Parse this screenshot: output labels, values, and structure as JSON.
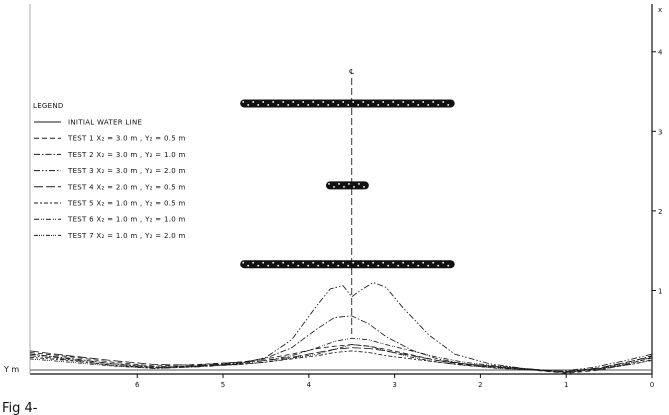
{
  "figure_label": "Fig 4-",
  "chart_data": {
    "type": "line",
    "title": "",
    "xlabel": "",
    "ylabel": "Y m",
    "right_axis_label": "x",
    "centerline_symbol": "℄",
    "x_ticks": [
      "6",
      "5",
      "4",
      "3",
      "2",
      "1",
      "0"
    ],
    "x_tick_values": [
      6,
      5,
      4,
      3,
      2,
      1,
      0
    ],
    "y_ticks": [
      "1",
      "2",
      "3",
      "4"
    ],
    "y_tick_values": [
      1,
      2,
      3,
      4
    ],
    "xlim": [
      0,
      7.25
    ],
    "ylim": [
      -0.05,
      4.6
    ],
    "x_reversed": true,
    "grid": false,
    "legend": {
      "title": "LEGEND",
      "entries": [
        {
          "label": "INITIAL WATER LINE",
          "dash": "solid"
        },
        {
          "label": "TEST 1  X₂ = 3.0 m ,  Y₂ = 0.5 m",
          "dash": "dashed"
        },
        {
          "label": "TEST 2  X₂ = 3.0 m ,  Y₂ = 1.0 m",
          "dash": "dash-dot"
        },
        {
          "label": "TEST 3  X₂ = 3.0 m ,  Y₂ = 2.0 m",
          "dash": "dash-dot-dot"
        },
        {
          "label": "TEST 4  X₂ = 2.0 m ,  Y₂ = 0.5 m",
          "dash": "long-dash"
        },
        {
          "label": "TEST 5  X₂ = 1.0 m ,  Y₂ = 0.5 m",
          "dash": "dash-x"
        },
        {
          "label": "TEST 6  X₂ = 1.0 m ,  Y₂ = 1.0 m",
          "dash": "dash-xx"
        },
        {
          "label": "TEST 7  X₂ = 1.0 m ,  Y₂ = 2.0 m",
          "dash": "dash-xxx"
        }
      ]
    },
    "breakwaters": [
      {
        "x_from": 4.8,
        "x_to": 2.3,
        "y": 3.35
      },
      {
        "x_from": 3.8,
        "x_to": 3.3,
        "y": 2.32
      },
      {
        "x_from": 4.8,
        "x_to": 2.3,
        "y": 1.33
      }
    ],
    "series": [
      {
        "name": "INITIAL WATER LINE",
        "dash": "solid",
        "x": [
          7.25,
          6,
          5,
          4.5,
          4,
          3.5,
          3,
          2.5,
          2,
          1.5,
          1,
          0.5,
          0
        ],
        "y": [
          0.0,
          0.0,
          0.0,
          0.0,
          0.0,
          0.0,
          0.0,
          0.0,
          0.0,
          0.0,
          0.0,
          0.0,
          0.0
        ]
      },
      {
        "name": "TEST 1  X₂ = 3.0 m ,  Y₂ = 0.5 m",
        "dash": "dashed",
        "x": [
          7.25,
          6.8,
          6.3,
          5.8,
          5.3,
          4.8,
          4.5,
          4.2,
          3.9,
          3.7,
          3.5,
          3.3,
          3.1,
          2.8,
          2.5,
          2.2,
          1.8,
          1.4,
          1.0,
          0.6,
          0.2,
          0
        ],
        "y": [
          0.22,
          0.17,
          0.1,
          0.05,
          0.07,
          0.1,
          0.14,
          0.2,
          0.27,
          0.3,
          0.32,
          0.3,
          0.26,
          0.19,
          0.12,
          0.07,
          0.03,
          0.0,
          -0.04,
          0.0,
          0.1,
          0.15
        ]
      },
      {
        "name": "TEST 2  X₂ = 3.0 m ,  Y₂ = 1.0 m",
        "dash": "dash-dot",
        "x": [
          7.25,
          6.8,
          6.3,
          5.8,
          5.3,
          4.8,
          4.5,
          4.2,
          3.9,
          3.7,
          3.5,
          3.3,
          3.1,
          2.8,
          2.5,
          2.2,
          1.8,
          1.4,
          1.0,
          0.6,
          0.2,
          0
        ],
        "y": [
          0.2,
          0.15,
          0.08,
          0.03,
          0.05,
          0.09,
          0.15,
          0.28,
          0.52,
          0.66,
          0.68,
          0.58,
          0.42,
          0.25,
          0.14,
          0.08,
          0.04,
          0.0,
          -0.02,
          0.02,
          0.12,
          0.18
        ]
      },
      {
        "name": "TEST 3  X₂ = 3.0 m ,  Y₂ = 2.0 m",
        "dash": "dash-dot-dot",
        "x": [
          7.25,
          6.8,
          6.3,
          5.8,
          5.3,
          4.8,
          4.5,
          4.2,
          3.9,
          3.75,
          3.6,
          3.5,
          3.4,
          3.25,
          3.1,
          2.9,
          2.6,
          2.3,
          1.9,
          1.5,
          1.1,
          0.7,
          0.3,
          0
        ],
        "y": [
          0.18,
          0.13,
          0.06,
          0.02,
          0.04,
          0.08,
          0.16,
          0.38,
          0.82,
          1.02,
          1.06,
          0.92,
          1.0,
          1.1,
          1.04,
          0.78,
          0.44,
          0.2,
          0.08,
          0.02,
          -0.02,
          0.03,
          0.12,
          0.2
        ]
      },
      {
        "name": "TEST 4  X₂ = 2.0 m ,  Y₂ = 0.5 m",
        "dash": "long-dash",
        "x": [
          7.25,
          6.8,
          6.3,
          5.8,
          5.3,
          4.8,
          4.5,
          4.2,
          3.9,
          3.7,
          3.5,
          3.3,
          3.1,
          2.8,
          2.5,
          2.2,
          1.8,
          1.4,
          1.0,
          0.6,
          0.2,
          0
        ],
        "y": [
          0.24,
          0.18,
          0.12,
          0.07,
          0.06,
          0.1,
          0.12,
          0.16,
          0.22,
          0.26,
          0.28,
          0.27,
          0.24,
          0.18,
          0.12,
          0.08,
          0.04,
          0.01,
          -0.02,
          0.03,
          0.12,
          0.17
        ]
      },
      {
        "name": "TEST 5  X₂ = 1.0 m ,  Y₂ = 0.5 m",
        "dash": "dash-x",
        "x": [
          7.25,
          6.8,
          6.3,
          5.8,
          5.3,
          4.8,
          4.5,
          4.2,
          3.9,
          3.7,
          3.5,
          3.3,
          3.1,
          2.8,
          2.5,
          2.2,
          1.8,
          1.4,
          1.0,
          0.6,
          0.2,
          0
        ],
        "y": [
          0.16,
          0.12,
          0.06,
          0.03,
          0.05,
          0.07,
          0.1,
          0.14,
          0.18,
          0.22,
          0.24,
          0.22,
          0.18,
          0.14,
          0.1,
          0.06,
          0.03,
          0.0,
          -0.03,
          0.01,
          0.08,
          0.13
        ]
      },
      {
        "name": "TEST 6  X₂ = 1.0 m ,  Y₂ = 1.0 m",
        "dash": "dash-xx",
        "x": [
          7.25,
          6.8,
          6.3,
          5.8,
          5.3,
          4.8,
          4.5,
          4.2,
          3.9,
          3.7,
          3.5,
          3.3,
          3.1,
          2.8,
          2.5,
          2.2,
          1.8,
          1.4,
          1.0,
          0.6,
          0.2,
          0
        ],
        "y": [
          0.2,
          0.14,
          0.08,
          0.04,
          0.05,
          0.08,
          0.12,
          0.18,
          0.28,
          0.36,
          0.4,
          0.38,
          0.32,
          0.24,
          0.16,
          0.1,
          0.05,
          0.01,
          -0.03,
          0.02,
          0.1,
          0.16
        ]
      },
      {
        "name": "TEST 7  X₂ = 1.0 m ,  Y₂ = 2.0 m",
        "dash": "dash-xxx",
        "x": [
          7.25,
          6.8,
          6.3,
          5.8,
          5.3,
          4.8,
          4.5,
          4.2,
          3.9,
          3.7,
          3.5,
          3.3,
          3.1,
          2.8,
          2.5,
          2.2,
          1.8,
          1.4,
          1.0,
          0.6,
          0.2,
          0
        ],
        "y": [
          0.14,
          0.1,
          0.05,
          0.02,
          0.04,
          0.07,
          0.1,
          0.15,
          0.2,
          0.26,
          0.32,
          0.3,
          0.24,
          0.16,
          0.1,
          0.06,
          0.02,
          0.0,
          -0.02,
          0.02,
          0.08,
          0.12
        ]
      }
    ]
  }
}
